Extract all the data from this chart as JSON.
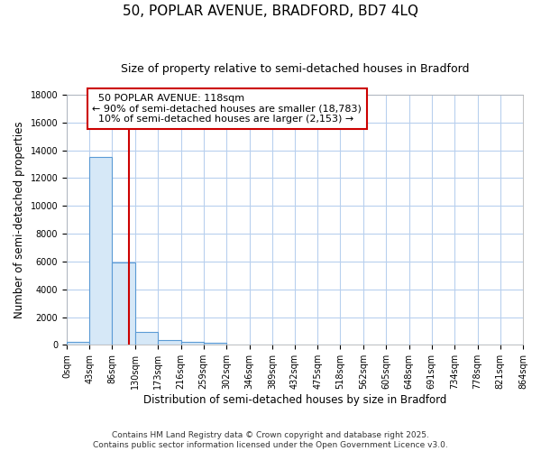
{
  "title1": "50, POPLAR AVENUE, BRADFORD, BD7 4LQ",
  "title2": "Size of property relative to semi-detached houses in Bradford",
  "xlabel": "Distribution of semi-detached houses by size in Bradford",
  "ylabel": "Number of semi-detached properties",
  "bin_edges": [
    0,
    43,
    86,
    130,
    173,
    216,
    259,
    302,
    346,
    389,
    432,
    475,
    518,
    562,
    605,
    648,
    691,
    734,
    778,
    821,
    864
  ],
  "bar_heights": [
    220,
    13500,
    5900,
    900,
    320,
    200,
    150,
    0,
    0,
    0,
    0,
    0,
    0,
    0,
    0,
    0,
    0,
    0,
    0,
    0
  ],
  "bar_color": "#d6e8f7",
  "bar_edge_color": "#5b9bd5",
  "property_size": 118,
  "property_label": "50 POPLAR AVENUE: 118sqm",
  "smaller_pct": "90%",
  "smaller_count": "18,783",
  "larger_pct": "10%",
  "larger_count": "2,153",
  "vline_color": "#cc0000",
  "annotation_box_color": "#cc0000",
  "background_color": "#ffffff",
  "grid_color": "#b8d0ee",
  "ylim": [
    0,
    18000
  ],
  "yticks": [
    0,
    2000,
    4000,
    6000,
    8000,
    10000,
    12000,
    14000,
    16000,
    18000
  ],
  "footer1": "Contains HM Land Registry data © Crown copyright and database right 2025.",
  "footer2": "Contains public sector information licensed under the Open Government Licence v3.0.",
  "title1_fontsize": 11,
  "title2_fontsize": 9,
  "tick_fontsize": 7,
  "label_fontsize": 8.5,
  "annotation_fontsize": 8,
  "footer_fontsize": 6.5
}
